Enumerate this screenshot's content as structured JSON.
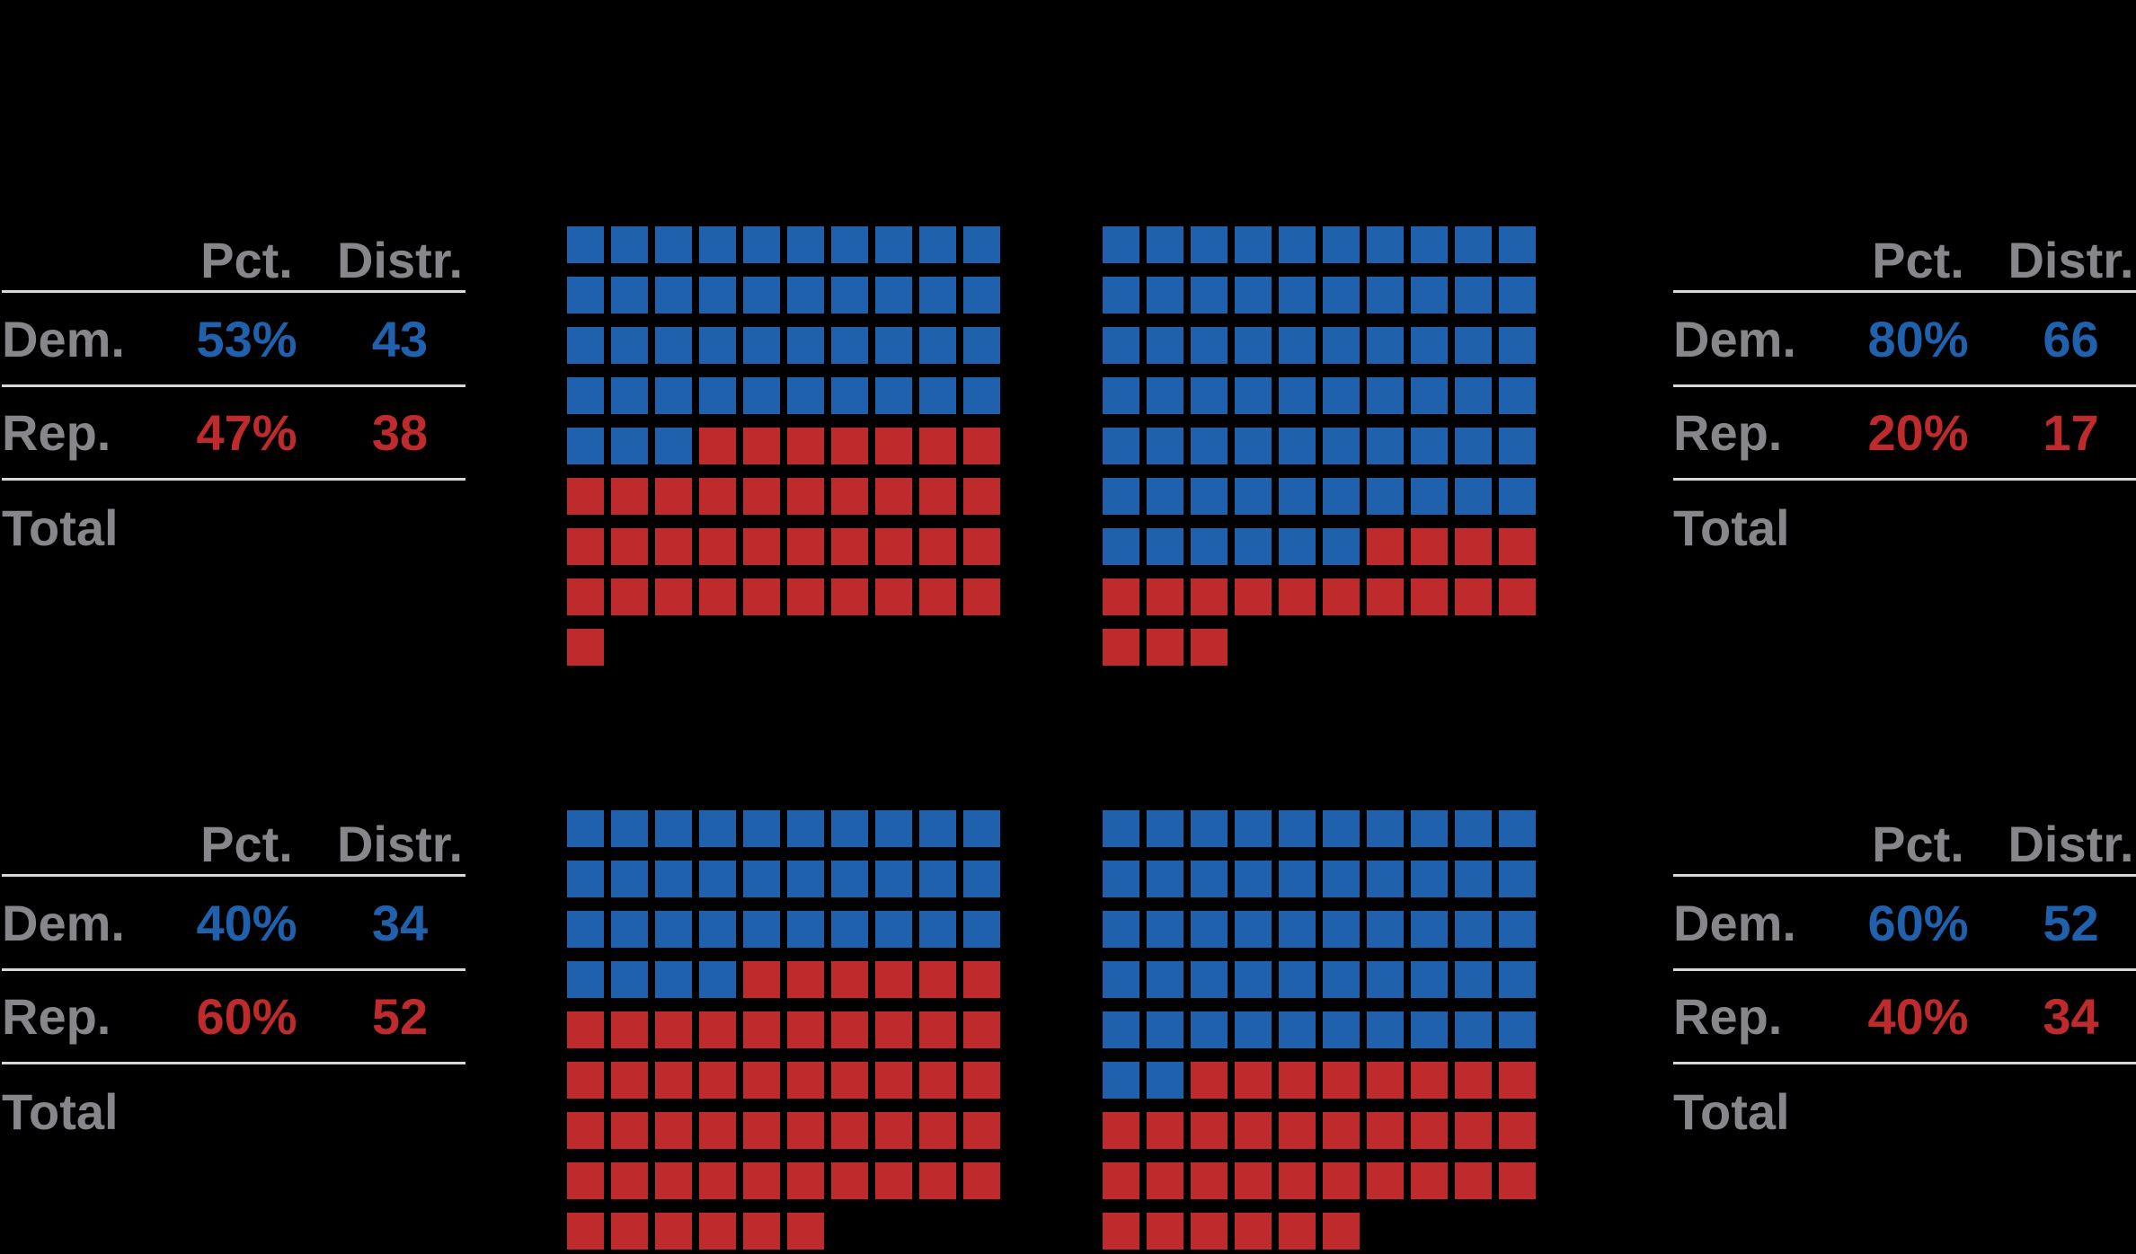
{
  "colors": {
    "background": "#000000",
    "dem_blue": "#2061ae",
    "rep_red": "#bf2a2d",
    "label_gray": "#87878b",
    "rule_gray": "#d9d9d9"
  },
  "chart_data": [
    {
      "type": "waffle",
      "position": "top-left",
      "columns": 10,
      "dem_seats": 43,
      "rep_seats": 38,
      "grid_rows_dem_rep": [
        [
          10,
          0
        ],
        [
          10,
          0
        ],
        [
          10,
          0
        ],
        [
          10,
          0
        ],
        [
          3,
          7
        ],
        [
          0,
          10
        ],
        [
          0,
          10
        ],
        [
          0,
          10
        ],
        [
          0,
          1
        ]
      ],
      "table": {
        "pct_header": "Pct.",
        "distr_header": "Distr.",
        "dem_label": "Dem.",
        "dem_pct": "53%",
        "dem_districts": "43",
        "rep_label": "Rep.",
        "rep_pct": "47%",
        "rep_districts": "38",
        "total_label": "Total"
      }
    },
    {
      "type": "waffle",
      "position": "top-right",
      "columns": 10,
      "dem_seats": 66,
      "rep_seats": 17,
      "grid_rows_dem_rep": [
        [
          10,
          0
        ],
        [
          10,
          0
        ],
        [
          10,
          0
        ],
        [
          10,
          0
        ],
        [
          10,
          0
        ],
        [
          10,
          0
        ],
        [
          6,
          4
        ],
        [
          0,
          10
        ],
        [
          0,
          3
        ]
      ],
      "table": {
        "pct_header": "Pct.",
        "distr_header": "Distr.",
        "dem_label": "Dem.",
        "dem_pct": "80%",
        "dem_districts": "66",
        "rep_label": "Rep.",
        "rep_pct": "20%",
        "rep_districts": "17",
        "total_label": "Total"
      }
    },
    {
      "type": "waffle",
      "position": "bottom-left",
      "columns": 10,
      "dem_seats": 34,
      "rep_seats": 52,
      "grid_rows_dem_rep": [
        [
          10,
          0
        ],
        [
          10,
          0
        ],
        [
          10,
          0
        ],
        [
          4,
          6
        ],
        [
          0,
          10
        ],
        [
          0,
          10
        ],
        [
          0,
          10
        ],
        [
          0,
          10
        ],
        [
          0,
          6
        ]
      ],
      "table": {
        "pct_header": "Pct.",
        "distr_header": "Distr.",
        "dem_label": "Dem.",
        "dem_pct": "40%",
        "dem_districts": "34",
        "rep_label": "Rep.",
        "rep_pct": "60%",
        "rep_districts": "52",
        "total_label": "Total"
      }
    },
    {
      "type": "waffle",
      "position": "bottom-right",
      "columns": 10,
      "dem_seats": 52,
      "rep_seats": 34,
      "grid_rows_dem_rep": [
        [
          10,
          0
        ],
        [
          10,
          0
        ],
        [
          10,
          0
        ],
        [
          10,
          0
        ],
        [
          10,
          0
        ],
        [
          2,
          8
        ],
        [
          0,
          10
        ],
        [
          0,
          10
        ],
        [
          0,
          6
        ]
      ],
      "table": {
        "pct_header": "Pct.",
        "distr_header": "Distr.",
        "dem_label": "Dem.",
        "dem_pct": "60%",
        "dem_districts": "52",
        "rep_label": "Rep.",
        "rep_pct": "40%",
        "rep_districts": "34",
        "total_label": "Total"
      }
    }
  ]
}
